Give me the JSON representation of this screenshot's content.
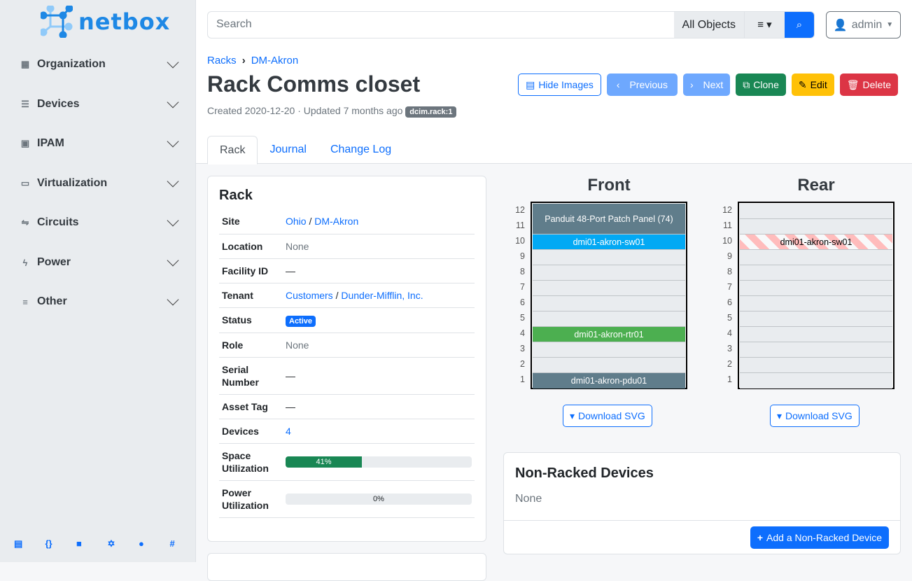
{
  "brand": "netbox",
  "sidebar": {
    "items": [
      {
        "label": "Organization",
        "icon": "building-icon"
      },
      {
        "label": "Devices",
        "icon": "server-icon"
      },
      {
        "label": "IPAM",
        "icon": "ip-icon"
      },
      {
        "label": "Virtualization",
        "icon": "monitor-icon"
      },
      {
        "label": "Circuits",
        "icon": "transit-icon"
      },
      {
        "label": "Power",
        "icon": "lightning-icon"
      },
      {
        "label": "Other",
        "icon": "notes-icon"
      }
    ],
    "footer": [
      "book-icon",
      "api-icon",
      "docs-icon",
      "graphql-icon",
      "github-icon",
      "slack-icon"
    ]
  },
  "search": {
    "placeholder": "Search",
    "scope": "All Objects"
  },
  "user": {
    "name": "admin"
  },
  "breadcrumb": [
    "Racks",
    "DM-Akron"
  ],
  "title": "Rack Comms closet",
  "meta": {
    "text": "Created 2020-12-20 · Updated 7 months ago",
    "tag": "dcim.rack:1"
  },
  "buttons": {
    "hide_images": "Hide Images",
    "previous": "Previous",
    "next": "Next",
    "clone": "Clone",
    "edit": "Edit",
    "delete": "Delete"
  },
  "tabs": [
    "Rack",
    "Journal",
    "Change Log"
  ],
  "rack_card": {
    "title": "Rack",
    "site": [
      "Ohio",
      "DM-Akron"
    ],
    "location": "None",
    "facility_id": "—",
    "tenant": [
      "Customers",
      "Dunder-Mifflin, Inc."
    ],
    "status": "Active",
    "role": "None",
    "serial": "—",
    "asset_tag": "—",
    "devices": "4",
    "space_util": 41,
    "space_util_label": "41%",
    "power_util": 0,
    "power_util_label": "0%",
    "labels": {
      "site": "Site",
      "location": "Location",
      "facility": "Facility ID",
      "tenant": "Tenant",
      "status": "Status",
      "role": "Role",
      "serial": "Serial Number",
      "asset": "Asset Tag",
      "devices": "Devices",
      "space": "Space Utilization",
      "power": "Power Utilization"
    }
  },
  "elevation": {
    "front_title": "Front",
    "rear_title": "Rear",
    "units": [
      "12",
      "11",
      "10",
      "9",
      "8",
      "7",
      "6",
      "5",
      "4",
      "3",
      "2",
      "1"
    ],
    "front_devices": {
      "panel": "Panduit 48-Port Patch Panel (74)",
      "sw": "dmi01-akron-sw01",
      "rtr": "dmi01-akron-rtr01",
      "pdu": "dmi01-akron-pdu01"
    },
    "rear_devices": {
      "sw": "dmi01-akron-sw01"
    },
    "download": "Download SVG",
    "colors": {
      "panel": "#607d8b",
      "sw": "#03a9f4",
      "rtr": "#4caf50",
      "pdu": "#607d8b"
    }
  },
  "non_racked": {
    "title": "Non-Racked Devices",
    "value": "None",
    "add": "Add a Non-Racked Device"
  }
}
